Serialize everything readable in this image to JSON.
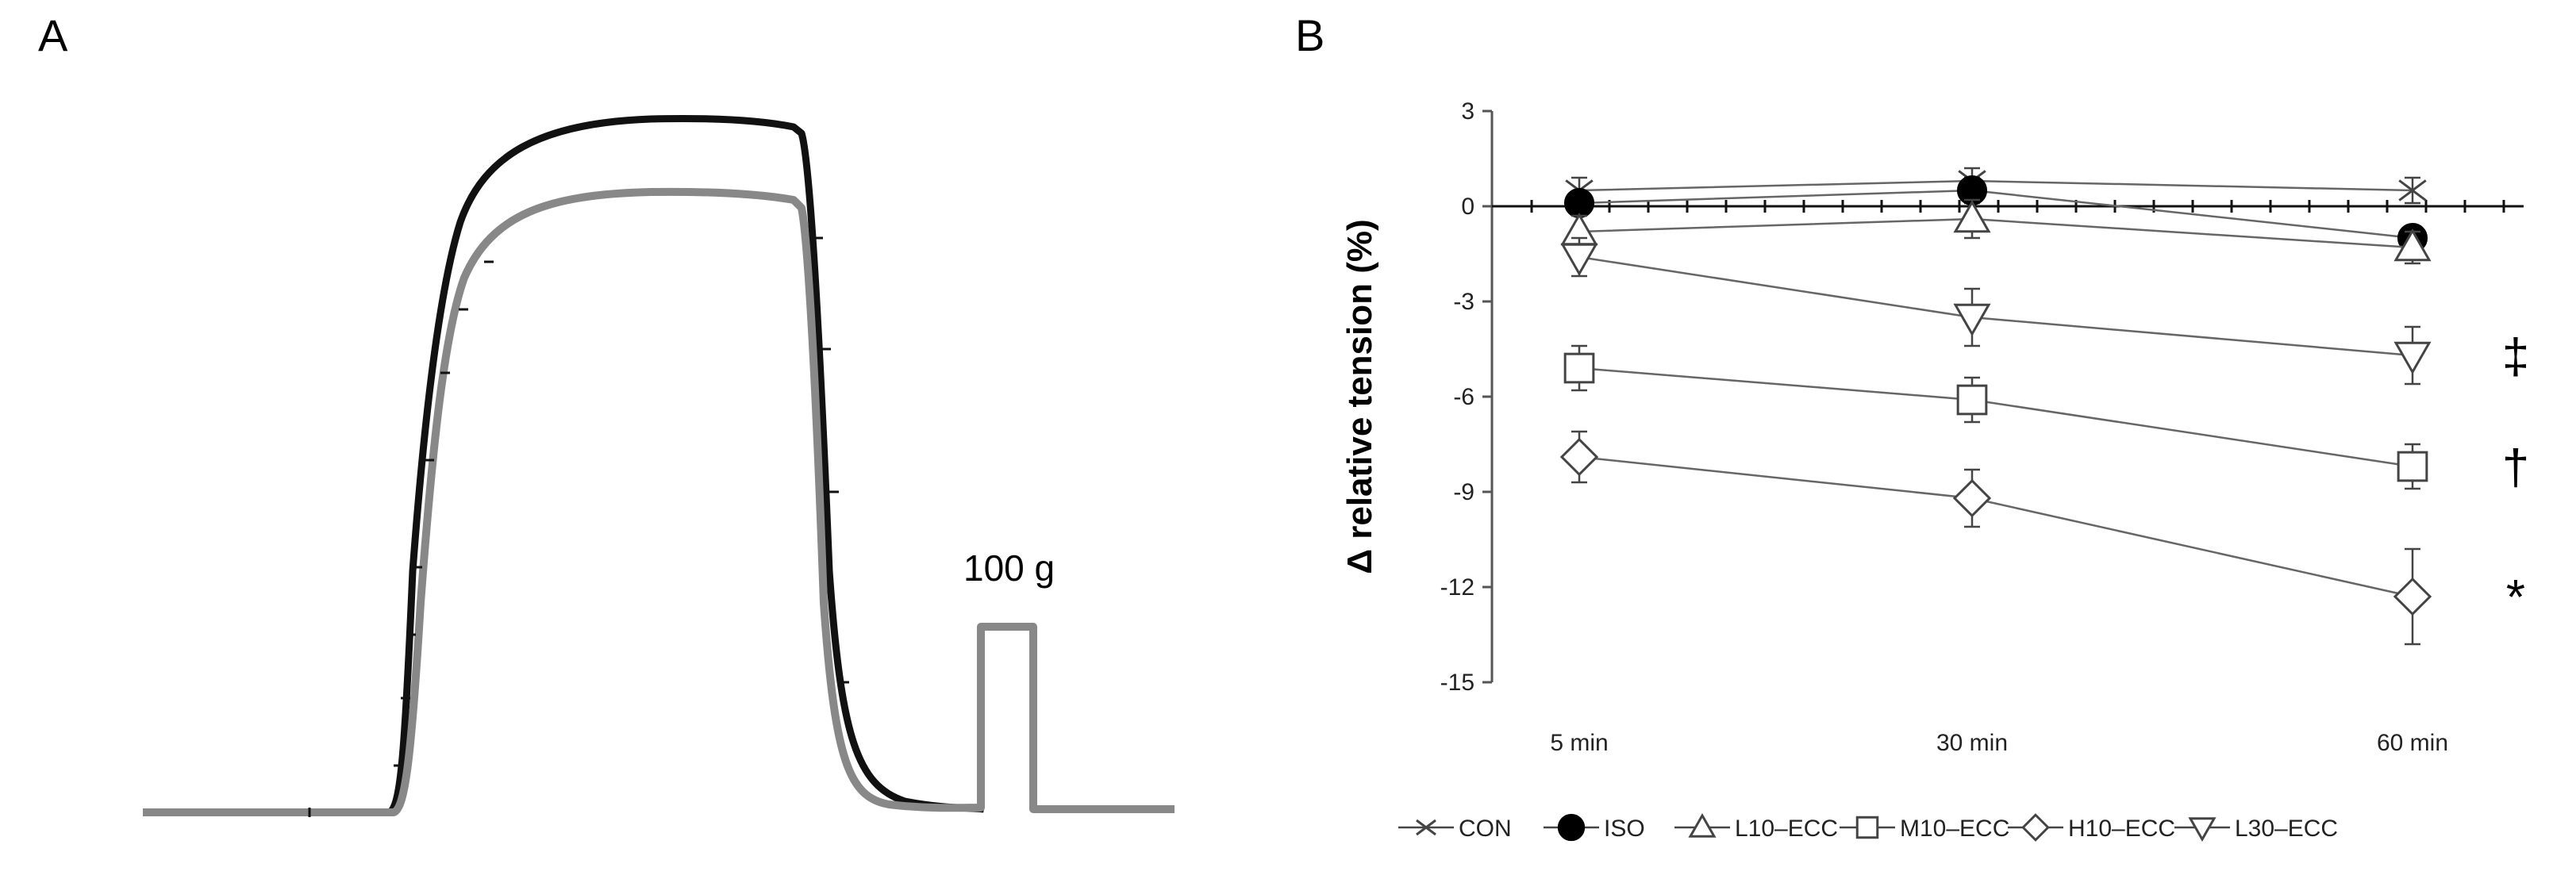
{
  "panels": {
    "a_label": "A",
    "b_label": "B"
  },
  "trace_panel": {
    "scale_label": "100 g"
  },
  "chart_data": {
    "type": "line",
    "ylabel": "Δ relative tension (%)",
    "xlabel": "",
    "categories": [
      "5 min",
      "30 min",
      "60 min"
    ],
    "ylim": [
      -15,
      3
    ],
    "yticks": [
      3,
      0,
      -3,
      -6,
      -9,
      -12,
      -15
    ],
    "series": [
      {
        "name": "CON",
        "marker": "x",
        "values": [
          0.5,
          0.8,
          0.5
        ],
        "err": [
          0.4,
          0.4,
          0.4
        ]
      },
      {
        "name": "ISO",
        "marker": "filled-circle",
        "values": [
          0.1,
          0.5,
          -1.0
        ],
        "err": [
          0.3,
          0.4,
          0.3
        ]
      },
      {
        "name": "L10–ECC",
        "marker": "triangle-up",
        "values": [
          -0.8,
          -0.4,
          -1.3
        ],
        "err": [
          0.5,
          0.6,
          0.5
        ]
      },
      {
        "name": "M10–ECC",
        "marker": "square",
        "values": [
          -5.1,
          -6.1,
          -8.2
        ],
        "err": [
          0.7,
          0.7,
          0.7
        ]
      },
      {
        "name": "H10–ECC",
        "marker": "diamond",
        "values": [
          -7.9,
          -9.2,
          -12.3
        ],
        "err": [
          0.8,
          0.9,
          1.5
        ]
      },
      {
        "name": "L30–ECC",
        "marker": "triangle-down",
        "values": [
          -1.6,
          -3.5,
          -4.7
        ],
        "err": [
          0.6,
          0.9,
          0.9
        ]
      }
    ],
    "significance": [
      {
        "series": "L30–ECC",
        "symbol": "‡"
      },
      {
        "series": "M10–ECC",
        "symbol": "†"
      },
      {
        "series": "H10–ECC",
        "symbol": "*"
      }
    ],
    "legend_position": "bottom"
  }
}
